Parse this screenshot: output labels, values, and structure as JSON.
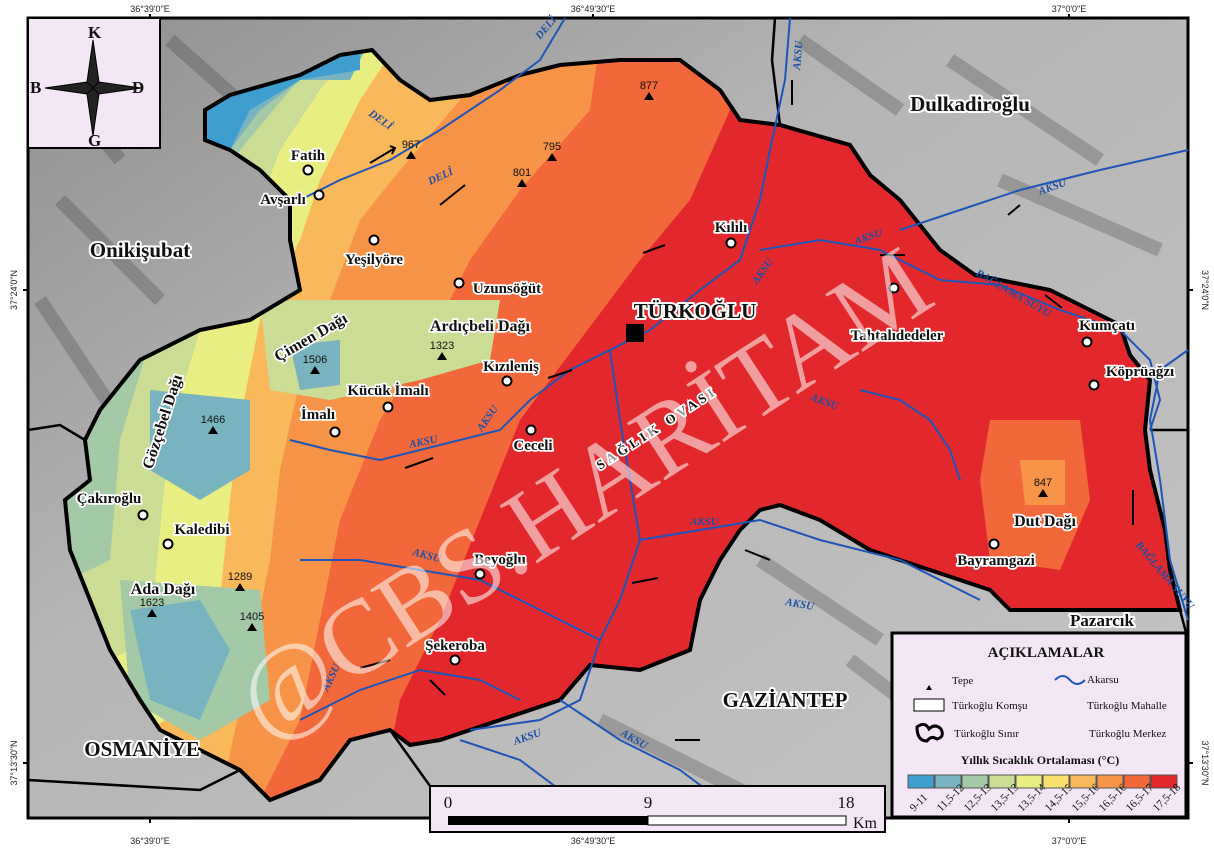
{
  "coordinates": {
    "top": [
      "36°39'0\"E",
      "36°49'30\"E",
      "37°0'0\"E"
    ],
    "bottom": [
      "36°39'0\"E",
      "36°49'30\"E",
      "37°0'0\"E"
    ],
    "left": [
      "37°24'0\"N",
      "37°13'30\"N"
    ],
    "right": [
      "37°24'0\"N",
      "37°13'30\"N"
    ]
  },
  "compass": {
    "north": "K",
    "south": "G",
    "west": "B",
    "east": "D"
  },
  "districts": [
    "Onikişubat",
    "Dulkadiroğlu",
    "GAZİANTEP",
    "OSMANİYE",
    "Pazarcık"
  ],
  "center": {
    "name": "TÜRKOĞLU"
  },
  "plain": "SAĞLIK OVASI",
  "places": [
    "Fatih",
    "Avşarlı",
    "Yeşilyöre",
    "Uzunsöğüt",
    "Kızıleniş",
    "Kücük İmalı",
    "İmalı",
    "Ceceli",
    "Kılılı",
    "Tahtalıdedeler",
    "Kumçatı",
    "Köprüağzı",
    "Bayramgazi",
    "Beyoğlu",
    "Şekeroba",
    "Çakıroğlu",
    "Kaledibi"
  ],
  "mountains": [
    "Çimen Dağı",
    "Ardıçbeli Dağı",
    "Gözçebel Dağı",
    "Ada Dağı",
    "Dut Dağı"
  ],
  "peaks": [
    "967",
    "795",
    "801",
    "877",
    "1506",
    "1323",
    "1466",
    "1289",
    "1623",
    "1405",
    "847"
  ],
  "rivers": {
    "deli": "DELİ",
    "aksu": "AKSU",
    "baglama": "BAĞLAMA SUYU"
  },
  "watermark": "@CBS.HARİTAM",
  "legend": {
    "title": "AÇIKLAMALAR",
    "items": {
      "peak": "Tepe",
      "stream": "Akarsu",
      "neighbor": "Türkoğlu Komşu",
      "neighborhood": "Türkoğlu Mahalle",
      "border": "Türkoğlu Sınır",
      "center": "Türkoğlu Merkez"
    },
    "scale_title": "Yıllık Sıcaklık Ortalaması (°C)",
    "classes": [
      {
        "label": "9-11",
        "color": "#3e9ed0"
      },
      {
        "label": "11,5-12",
        "color": "#7ab3c0"
      },
      {
        "label": "12,5-13",
        "color": "#a4c9a6"
      },
      {
        "label": "13,5-13",
        "color": "#cbdc95"
      },
      {
        "label": "13,5-14",
        "color": "#e9ee82"
      },
      {
        "label": "14,5-15",
        "color": "#f8e06e"
      },
      {
        "label": "15,5-16",
        "color": "#f9b85a"
      },
      {
        "label": "16,5-16",
        "color": "#f79447"
      },
      {
        "label": "16,5-17",
        "color": "#f2683a"
      },
      {
        "label": "17,5-18",
        "color": "#e2282c"
      }
    ]
  },
  "scalebar": {
    "ticks": [
      "0",
      "9",
      "18"
    ],
    "unit": "Km"
  }
}
